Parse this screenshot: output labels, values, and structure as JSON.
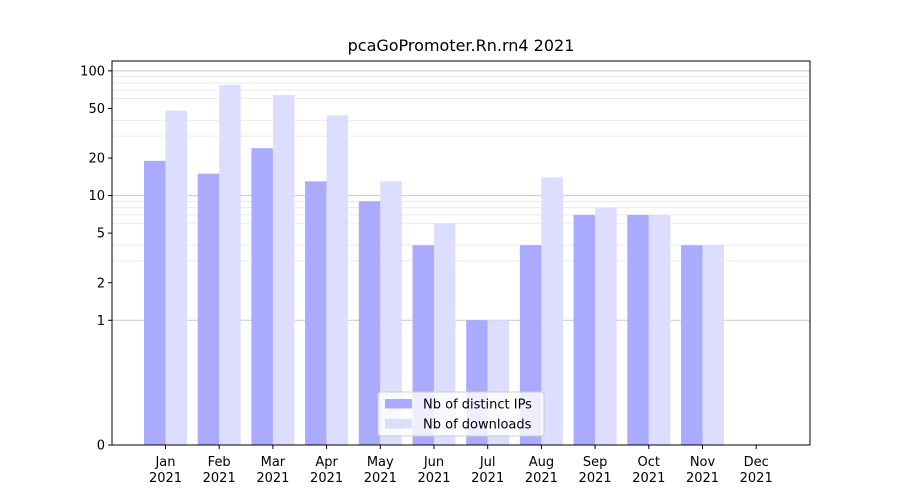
{
  "chart_data": {
    "type": "bar",
    "title": "pcaGoPromoter.Rn.rn4 2021",
    "xlabel": "",
    "ylabel": "",
    "yscale": "symlog",
    "ylim": [
      0,
      120
    ],
    "grid": "horizontal",
    "legend_position": "bottom-center",
    "categories": [
      [
        "Jan",
        "2021"
      ],
      [
        "Feb",
        "2021"
      ],
      [
        "Mar",
        "2021"
      ],
      [
        "Apr",
        "2021"
      ],
      [
        "May",
        "2021"
      ],
      [
        "Jun",
        "2021"
      ],
      [
        "Jul",
        "2021"
      ],
      [
        "Aug",
        "2021"
      ],
      [
        "Sep",
        "2021"
      ],
      [
        "Oct",
        "2021"
      ],
      [
        "Nov",
        "2021"
      ],
      [
        "Dec",
        "2021"
      ]
    ],
    "yticks": [
      {
        "value": 0,
        "label": "0"
      },
      {
        "value": 1,
        "label": "1"
      },
      {
        "value": 2,
        "label": "2"
      },
      {
        "value": 5,
        "label": "5"
      },
      {
        "value": 10,
        "label": "10"
      },
      {
        "value": 20,
        "label": "20"
      },
      {
        "value": 50,
        "label": "50"
      },
      {
        "value": 100,
        "label": "100"
      }
    ],
    "series": [
      {
        "name": "Nb of distinct IPs",
        "color": "#aaaaff",
        "values": [
          19,
          15,
          24,
          13,
          9,
          4,
          1,
          4,
          7,
          7,
          4,
          0
        ]
      },
      {
        "name": "Nb of downloads",
        "color": "#ddddff",
        "values": [
          48,
          77,
          64,
          44,
          13,
          6,
          1,
          14,
          8,
          7,
          4,
          0
        ]
      }
    ]
  }
}
